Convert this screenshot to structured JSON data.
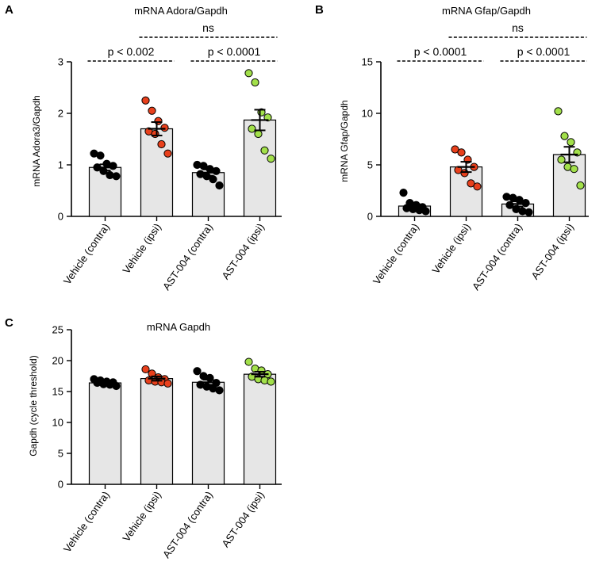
{
  "chart_data": [
    {
      "id": "A",
      "panel_letter": "A",
      "type": "bar",
      "title": "mRNA Adora/Gapdh",
      "xlabel": "",
      "ylabel": "mRNA Adora3/Gapdh",
      "ylim": [
        0,
        3
      ],
      "yticks": [
        0,
        1,
        2,
        3
      ],
      "ytick_labels": [
        "0",
        "1",
        "2",
        "3"
      ],
      "categories": [
        "Vehicle (contra)",
        "Vehicle (ipsi)",
        "AST-004  (contra)",
        "AST-004 (ipsi)"
      ],
      "values": [
        0.95,
        1.7,
        0.85,
        1.87
      ],
      "sem": [
        0.06,
        0.13,
        0.06,
        0.2
      ],
      "point_colors": [
        "#000000",
        "#e8401c",
        "#000000",
        "#a2e04a"
      ],
      "points": [
        [
          1.22,
          1.18,
          1.02,
          0.98,
          0.95,
          0.88,
          0.8,
          0.78
        ],
        [
          2.25,
          2.05,
          1.85,
          1.72,
          1.65,
          1.6,
          1.4,
          1.22
        ],
        [
          1.0,
          0.98,
          0.92,
          0.88,
          0.82,
          0.78,
          0.72,
          0.6
        ],
        [
          2.78,
          2.6,
          2.02,
          1.92,
          1.7,
          1.6,
          1.28,
          1.12
        ]
      ],
      "comparisons": [
        {
          "from": 0,
          "to": 1,
          "label": "p < 0.002",
          "level": 1
        },
        {
          "from": 2,
          "to": 3,
          "label": "p < 0.0001",
          "level": 1
        },
        {
          "from": 1,
          "to": 3,
          "label": "ns",
          "level": 2
        }
      ]
    },
    {
      "id": "B",
      "panel_letter": "B",
      "type": "bar",
      "title": "mRNA Gfap/Gapdh",
      "xlabel": "",
      "ylabel": "mRNA Gfap/Gapdh",
      "ylim": [
        0,
        15
      ],
      "yticks": [
        0,
        5,
        10,
        15
      ],
      "ytick_labels": [
        "0",
        "5",
        "10",
        "15"
      ],
      "categories": [
        "Vehicle (contra)",
        "Vehicle (ipsi)",
        "AST-004  (contra)",
        "AST-004 (ipsi)"
      ],
      "values": [
        1.0,
        4.8,
        1.2,
        6.0
      ],
      "sem": [
        0.2,
        0.5,
        0.25,
        0.75
      ],
      "point_colors": [
        "#000000",
        "#e8401c",
        "#000000",
        "#a2e04a"
      ],
      "points": [
        [
          2.3,
          1.3,
          1.1,
          0.9,
          0.8,
          0.7,
          0.6,
          0.5
        ],
        [
          6.5,
          6.2,
          5.5,
          4.8,
          4.5,
          4.2,
          3.2,
          2.9
        ],
        [
          1.9,
          1.8,
          1.6,
          1.3,
          1.1,
          0.7,
          0.5,
          0.4
        ],
        [
          10.2,
          7.8,
          7.2,
          6.2,
          5.5,
          4.8,
          4.6,
          3.0
        ]
      ],
      "comparisons": [
        {
          "from": 0,
          "to": 1,
          "label": "p < 0.0001",
          "level": 1
        },
        {
          "from": 2,
          "to": 3,
          "label": "p < 0.0001",
          "level": 1
        },
        {
          "from": 1,
          "to": 3,
          "label": "ns",
          "level": 2
        }
      ]
    },
    {
      "id": "C",
      "panel_letter": "C",
      "type": "bar",
      "title": "mRNA Gapdh",
      "xlabel": "",
      "ylabel": "Gapdh (cycle threshold)",
      "ylim": [
        0,
        25
      ],
      "yticks": [
        0,
        5,
        10,
        15,
        20,
        25
      ],
      "ytick_labels": [
        "0",
        "5",
        "10",
        "15",
        "20",
        "25"
      ],
      "categories": [
        "Vehicle (contra)",
        "Vehicle (ipsi)",
        "AST-004  (contra)",
        "AST-004 (ipsi)"
      ],
      "values": [
        16.4,
        17.1,
        16.5,
        17.8
      ],
      "sem": [
        0.25,
        0.35,
        0.4,
        0.4
      ],
      "point_colors": [
        "#000000",
        "#e8401c",
        "#000000",
        "#a2e04a"
      ],
      "points": [
        [
          17.0,
          16.8,
          16.6,
          16.5,
          16.4,
          16.2,
          16.1,
          15.9
        ],
        [
          18.6,
          17.9,
          17.3,
          17.0,
          16.8,
          16.6,
          16.5,
          16.3
        ],
        [
          18.3,
          17.5,
          17.2,
          16.4,
          16.1,
          15.8,
          15.5,
          15.2
        ],
        [
          19.8,
          18.7,
          18.4,
          17.8,
          17.4,
          17.0,
          16.8,
          16.6
        ]
      ],
      "comparisons": []
    }
  ]
}
